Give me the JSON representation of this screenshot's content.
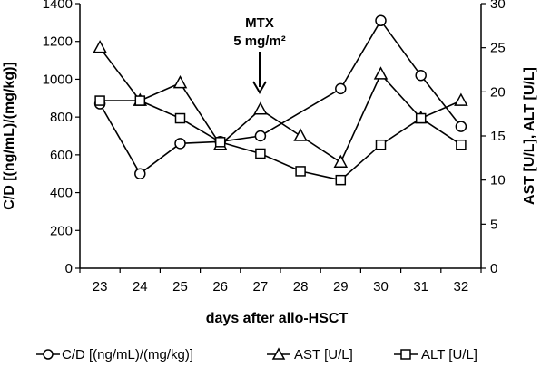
{
  "chart_data": {
    "type": "line",
    "title": "",
    "categories": [
      "23",
      "24",
      "25",
      "26",
      "27",
      "28",
      "29",
      "30",
      "31",
      "32"
    ],
    "xlabel": "days after allo-HSCT",
    "ylabel_left": "C/D [(ng/mL)/(mg/kg)]",
    "ylabel_right": "AST [U/L], ALT [U/L]",
    "ylim_left": [
      0,
      1400
    ],
    "yticks_left": [
      0,
      200,
      400,
      600,
      800,
      1000,
      1200,
      1400
    ],
    "ylim_right": [
      0,
      30
    ],
    "yticks_right": [
      0,
      5,
      10,
      15,
      20,
      25,
      30
    ],
    "grid": false,
    "legend_position": "bottom",
    "series": [
      {
        "name": "C/D [(ng/mL)/(mg/kg)]",
        "axis": "left",
        "marker": "circle",
        "values": [
          870,
          500,
          660,
          670,
          700,
          null,
          950,
          1310,
          1020,
          750
        ]
      },
      {
        "name": "AST [U/L]",
        "axis": "right",
        "marker": "triangle",
        "values": [
          25,
          19,
          21,
          14,
          18,
          15,
          12,
          22,
          17,
          19
        ]
      },
      {
        "name": "ALT [U/L]",
        "axis": "right",
        "marker": "square",
        "values": [
          19,
          19,
          17,
          14.3,
          13,
          11,
          10,
          14,
          17,
          14
        ]
      }
    ],
    "annotation": {
      "line1": "MTX",
      "line2": "5 mg/m²",
      "category": "27"
    }
  }
}
